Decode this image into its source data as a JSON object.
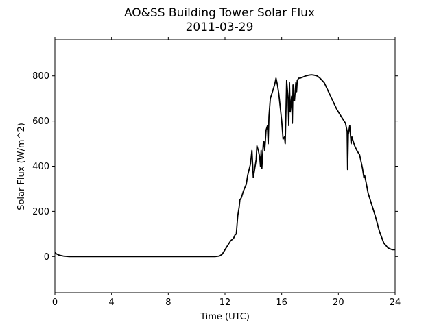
{
  "chart_data": {
    "type": "line",
    "title": "AO&SS Building Tower Solar Flux",
    "subtitle": "2011-03-29",
    "xlabel": "Time (UTC)",
    "ylabel": "Solar Flux (W/m^2)",
    "xlim": [
      0,
      24
    ],
    "ylim": [
      -160,
      960
    ],
    "xticks": [
      0,
      4,
      8,
      12,
      16,
      20,
      24
    ],
    "yticks": [
      0,
      200,
      400,
      600,
      800
    ],
    "grid": false,
    "line_color": "#000000",
    "series": [
      {
        "x": [
          0,
          0.1,
          0.3,
          0.6,
          1.0,
          2,
          4,
          6,
          8,
          10,
          11.3,
          11.6,
          11.8,
          12.0,
          12.2,
          12.4,
          12.6,
          12.7,
          12.8,
          12.9,
          13.0,
          13.05,
          13.15,
          13.3,
          13.5,
          13.6,
          13.8,
          13.9,
          14.0,
          14.1,
          14.2,
          14.25,
          14.35,
          14.45,
          14.5,
          14.55,
          14.6,
          14.7,
          14.75,
          14.8,
          14.9,
          15.0,
          15.05,
          15.1,
          15.2,
          15.3,
          15.5,
          15.6,
          15.7,
          15.8,
          15.9,
          16.0,
          16.05,
          16.1,
          16.2,
          16.25,
          16.3,
          16.35,
          16.45,
          16.5,
          16.55,
          16.6,
          16.7,
          16.75,
          16.8,
          16.85,
          16.9,
          17.0,
          17.05,
          17.1,
          17.2,
          17.3,
          17.5,
          17.7,
          17.9,
          18.1,
          18.3,
          18.5,
          18.7,
          19.0,
          19.3,
          19.6,
          19.9,
          20.2,
          20.5,
          20.6,
          20.62,
          20.65,
          20.7,
          20.75,
          20.8,
          20.9,
          20.95,
          21.0,
          21.05,
          21.15,
          21.3,
          21.5,
          21.7,
          21.8,
          21.85,
          21.95,
          22.1,
          22.3,
          22.6,
          22.9,
          23.2,
          23.5,
          23.8,
          23.9,
          24.0
        ],
        "y": [
          18,
          12,
          6,
          2,
          0,
          0,
          0,
          0,
          0,
          0,
          0,
          2,
          10,
          30,
          50,
          70,
          80,
          95,
          100,
          180,
          220,
          250,
          260,
          290,
          320,
          360,
          410,
          470,
          350,
          390,
          430,
          490,
          470,
          440,
          400,
          470,
          390,
          500,
          510,
          470,
          560,
          580,
          500,
          620,
          700,
          720,
          760,
          790,
          760,
          720,
          660,
          600,
          560,
          520,
          530,
          500,
          640,
          780,
          700,
          580,
          770,
          640,
          710,
          590,
          760,
          690,
          690,
          770,
          730,
          780,
          790,
          790,
          795,
          800,
          803,
          805,
          803,
          800,
          790,
          770,
          730,
          690,
          650,
          620,
          590,
          560,
          555,
          385,
          540,
          560,
          580,
          500,
          530,
          520,
          510,
          490,
          470,
          450,
          390,
          350,
          360,
          330,
          280,
          240,
          180,
          110,
          60,
          38,
          30,
          30,
          30
        ]
      }
    ]
  }
}
